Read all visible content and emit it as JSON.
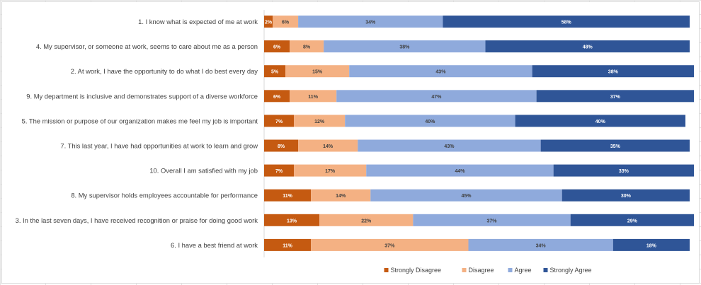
{
  "chart_data": {
    "type": "bar",
    "orientation": "horizontal",
    "stacked": "percent",
    "title": "",
    "xlabel": "",
    "ylabel": "",
    "xlim": [
      0,
      100
    ],
    "grid": false,
    "legend": {
      "position": "bottom"
    },
    "categories": [
      "1. I know what is expected of me at work",
      "4. My supervisor, or someone at work, seems to care about me as a person",
      "2. At work, I have the opportunity to do what I do best every day",
      "9. My department is inclusive and demonstrates support of a diverse workforce",
      "5. The mission or purpose of our organization makes me feel my job is important",
      "7. This last year, I have had opportunities at work to learn and grow",
      "10. Overall I am satisfied with my job",
      "8. My supervisor holds employees accountable for performance",
      "3. In the last seven days, I have received recognition or praise for doing good work",
      "6. I have a best friend at work"
    ],
    "series": [
      {
        "name": "Strongly Disagree",
        "color": "#c55a11",
        "label_color": "#ffffff",
        "values": [
          2,
          6,
          5,
          6,
          7,
          8,
          7,
          11,
          13,
          11
        ]
      },
      {
        "name": "Disagree",
        "color": "#f4b183",
        "label_color": "#404040",
        "values": [
          6,
          8,
          15,
          11,
          12,
          14,
          17,
          14,
          22,
          37
        ]
      },
      {
        "name": "Agree",
        "color": "#8faadc",
        "label_color": "#404040",
        "values": [
          34,
          38,
          43,
          47,
          40,
          43,
          44,
          45,
          37,
          34
        ]
      },
      {
        "name": "Strongly Agree",
        "color": "#2f5597",
        "label_color": "#ffffff",
        "values": [
          58,
          48,
          38,
          37,
          40,
          35,
          33,
          30,
          29,
          18
        ]
      }
    ],
    "value_suffix": "%"
  }
}
